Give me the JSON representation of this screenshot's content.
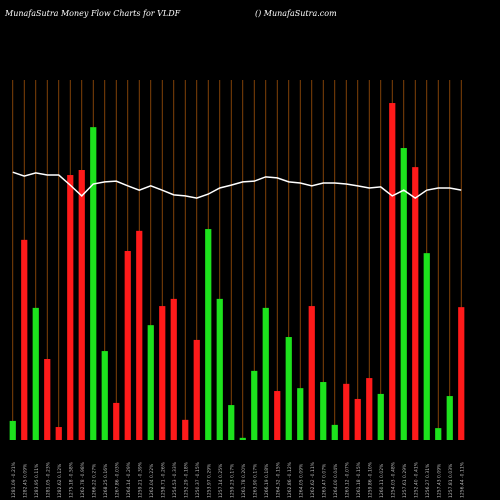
{
  "chart_data": {
    "type": "bar",
    "title": "MunafaSutra  Money Flow  Charts for VLDF",
    "subtitle": "() MunafaSutra.com",
    "categories": [
      "1281.09 -0.21%",
      "1282.45 0.09%",
      "1283.95 0.11%",
      "1281.05 -0.23%",
      "1282.62 0.12%",
      "1275.18 -0.58%",
      "1262.78 -0.98%",
      "1266.22 0.27%",
      "1268.25 0.16%",
      "1267.86 -0.03%",
      "1264.14 -0.29%",
      "1259.21 -0.39%",
      "1262.04 0.22%",
      "1258.71 -0.26%",
      "1254.53 -0.33%",
      "1252.29 -0.18%",
      "1250.37 -0.15%",
      "1253.97 0.29%",
      "1257.14 0.25%",
      "1259.23 0.17%",
      "1261.78 0.20%",
      "1263.90 0.17%",
      "1266.19 0.18%",
      "1264.32 -0.15%",
      "1262.86 -0.12%",
      "1264.05 0.09%",
      "1262.62 -0.11%",
      "1263.47 0.07%",
      "1264.00 0.04%",
      "1263.12 -0.07%",
      "1261.18 -0.15%",
      "1259.86 -0.10%",
      "1260.11 0.02%",
      "1254.03 -0.48%",
      "1257.61 0.29%",
      "1252.40 -0.41%",
      "1256.27 0.31%",
      "1257.43 0.09%",
      "1257.81 0.03%",
      "1256.44 -0.11%"
    ],
    "values": [
      5.3,
      55.6,
      36.7,
      22.5,
      3.6,
      73.6,
      75,
      86.9,
      24.7,
      10.3,
      52.5,
      58.1,
      31.9,
      37.2,
      39.2,
      5.6,
      27.8,
      58.6,
      39.2,
      9.7,
      0.6,
      19.2,
      36.7,
      13.6,
      28.6,
      14.4,
      37.2,
      16.1,
      4.2,
      15.6,
      11.4,
      17.2,
      12.8,
      93.6,
      81.1,
      75.8,
      51.9,
      3.3,
      12.2,
      36.9
    ],
    "colors": [
      "#1de21d",
      "#ff1a1a",
      "#1de21d",
      "#ff1a1a",
      "#ff1a1a",
      "#ff1a1a",
      "#ff1a1a",
      "#1de21d",
      "#1de21d",
      "#ff1a1a",
      "#ff1a1a",
      "#ff1a1a",
      "#1de21d",
      "#ff1a1a",
      "#ff1a1a",
      "#ff1a1a",
      "#ff1a1a",
      "#1de21d",
      "#1de21d",
      "#1de21d",
      "#1de21d",
      "#1de21d",
      "#1de21d",
      "#ff1a1a",
      "#1de21d",
      "#1de21d",
      "#ff1a1a",
      "#1de21d",
      "#1de21d",
      "#ff1a1a",
      "#ff1a1a",
      "#ff1a1a",
      "#1de21d",
      "#ff1a1a",
      "#1de21d",
      "#ff1a1a",
      "#1de21d",
      "#1de21d",
      "#1de21d",
      "#ff1a1a"
    ],
    "line": {
      "color": "#ffffff",
      "values": [
        74.4,
        73.3,
        74.2,
        73.6,
        73.6,
        70.8,
        67.8,
        71.1,
        71.7,
        71.9,
        70.6,
        69.4,
        70.6,
        69.4,
        68.1,
        67.8,
        67.2,
        68.3,
        70,
        70.8,
        71.7,
        71.9,
        73.1,
        72.8,
        71.7,
        71.4,
        70.6,
        71.4,
        71.4,
        71.1,
        70.6,
        70,
        70.3,
        67.8,
        69.4,
        67.2,
        69.4,
        70,
        70,
        69.4
      ]
    },
    "ylim": [
      0,
      100
    ],
    "grid_color": "#a0520a"
  }
}
